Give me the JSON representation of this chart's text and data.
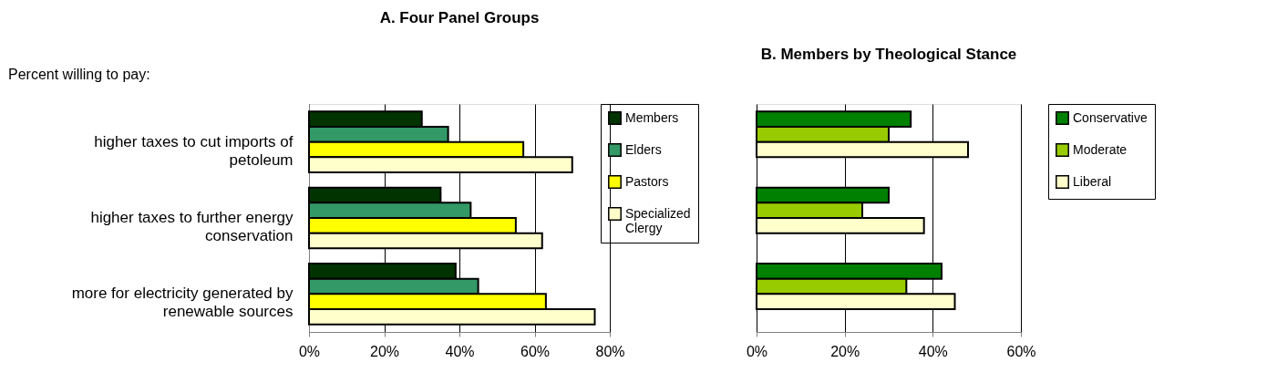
{
  "chart_data": [
    {
      "type": "bar",
      "orientation": "horizontal",
      "title": "A.  Four Panel Groups",
      "annotations": [
        "Percent willing to pay:"
      ],
      "categories": [
        "higher taxes to cut imports of petoleum",
        "higher taxes to further energy conservation",
        "more for electricity generated by renewable sources"
      ],
      "series": [
        {
          "name": "Members",
          "color": "#003300",
          "values": [
            30,
            35,
            39
          ]
        },
        {
          "name": "Elders",
          "color": "#339966",
          "values": [
            37,
            43,
            45
          ]
        },
        {
          "name": "Pastors",
          "color": "#ffff00",
          "values": [
            57,
            55,
            63
          ]
        },
        {
          "name": "Specialized Clergy",
          "color": "#ffffcc",
          "values": [
            70,
            62,
            76
          ]
        }
      ],
      "xlim": [
        0,
        80
      ],
      "xticks": [
        {
          "value": 0,
          "label": "0%"
        },
        {
          "value": 20,
          "label": "20%"
        },
        {
          "value": 40,
          "label": "40%"
        },
        {
          "value": 60,
          "label": "60%"
        },
        {
          "value": 80,
          "label": "80%"
        }
      ],
      "grid": "x",
      "legend": "right"
    },
    {
      "type": "bar",
      "orientation": "horizontal",
      "title": "B.  Members by Theological Stance",
      "categories": [
        null,
        null,
        null
      ],
      "series": [
        {
          "name": "Conservative",
          "color": "#008000",
          "values": [
            35,
            30,
            42
          ]
        },
        {
          "name": "Moderate",
          "color": "#99cc00",
          "values": [
            30,
            24,
            34
          ]
        },
        {
          "name": "Liberal",
          "color": "#ffffcc",
          "values": [
            48,
            38,
            45
          ]
        }
      ],
      "xlim": [
        0,
        60
      ],
      "xticks": [
        {
          "value": 0,
          "label": "0%"
        },
        {
          "value": 20,
          "label": "20%"
        },
        {
          "value": 40,
          "label": "40%"
        },
        {
          "value": 60,
          "label": "60%"
        }
      ],
      "grid": "x",
      "legend": "right",
      "tick_labels": "x"
    }
  ]
}
